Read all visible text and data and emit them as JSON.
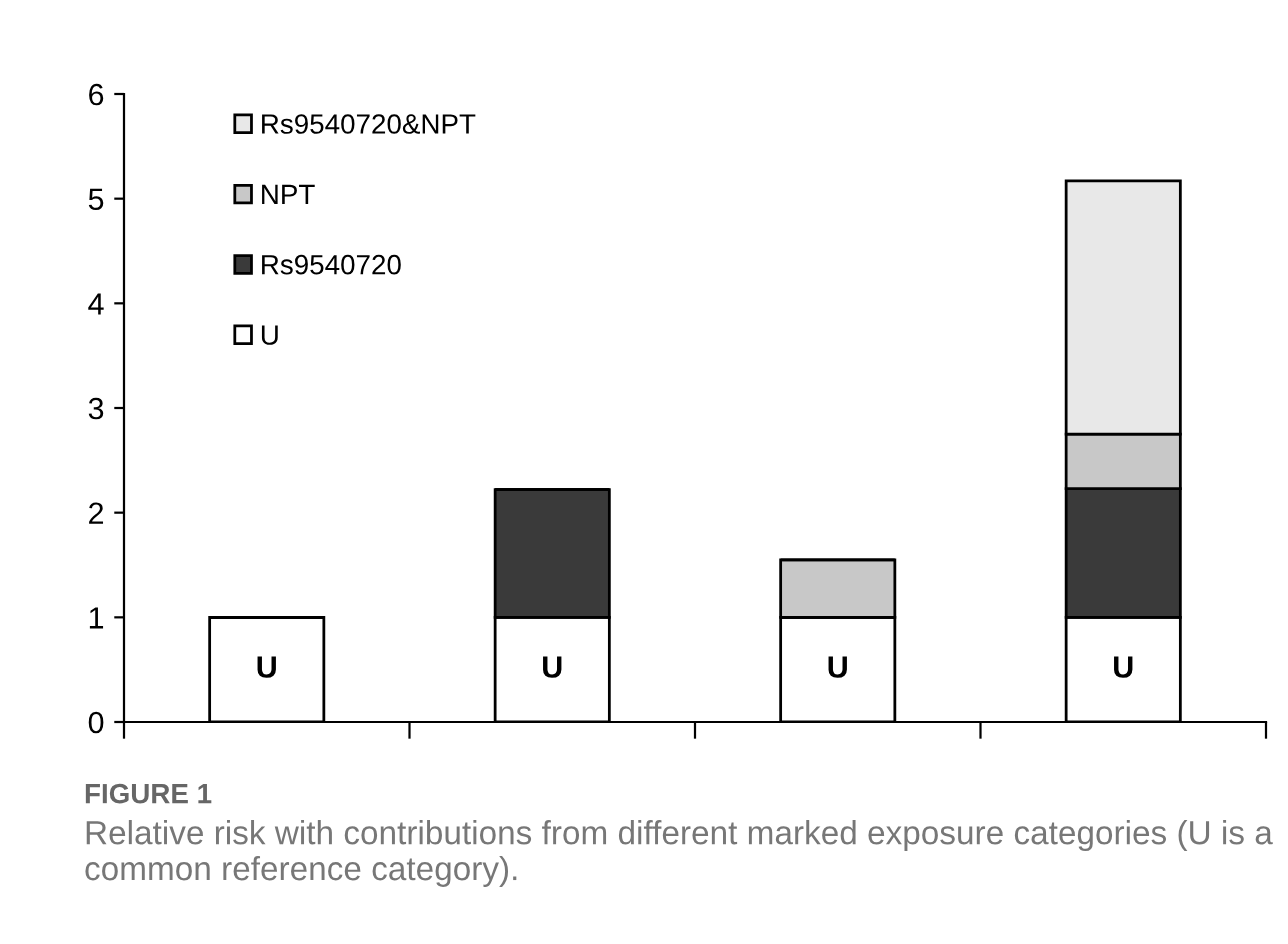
{
  "chart_data": {
    "type": "bar",
    "stacked": true,
    "categories": [
      null,
      null,
      null,
      null
    ],
    "series": [
      {
        "name": "U",
        "color": "#ffffff",
        "values": [
          1,
          1,
          1,
          1
        ],
        "value_labels": [
          "U",
          "U",
          "U",
          "U"
        ]
      },
      {
        "name": "Rs9540720",
        "color": "#3a3a3a",
        "values": [
          null,
          1.22,
          null,
          1.23
        ]
      },
      {
        "name": "NPT",
        "color": "#c8c8c8",
        "values": [
          null,
          null,
          0.55,
          0.52
        ]
      },
      {
        "name": "Rs9540720&NPT",
        "color": "#e8e8e8",
        "values": [
          null,
          null,
          null,
          2.42
        ]
      }
    ],
    "ylim": [
      0,
      6
    ],
    "yticks": [
      0,
      1,
      2,
      3,
      4,
      5,
      6
    ],
    "grid": false,
    "legend": "top left",
    "tick_labels": "y",
    "annotations": [
      "FIGURE 1",
      "Relative risk with contributions from different marked exposure categories (U is a common reference category)."
    ]
  }
}
